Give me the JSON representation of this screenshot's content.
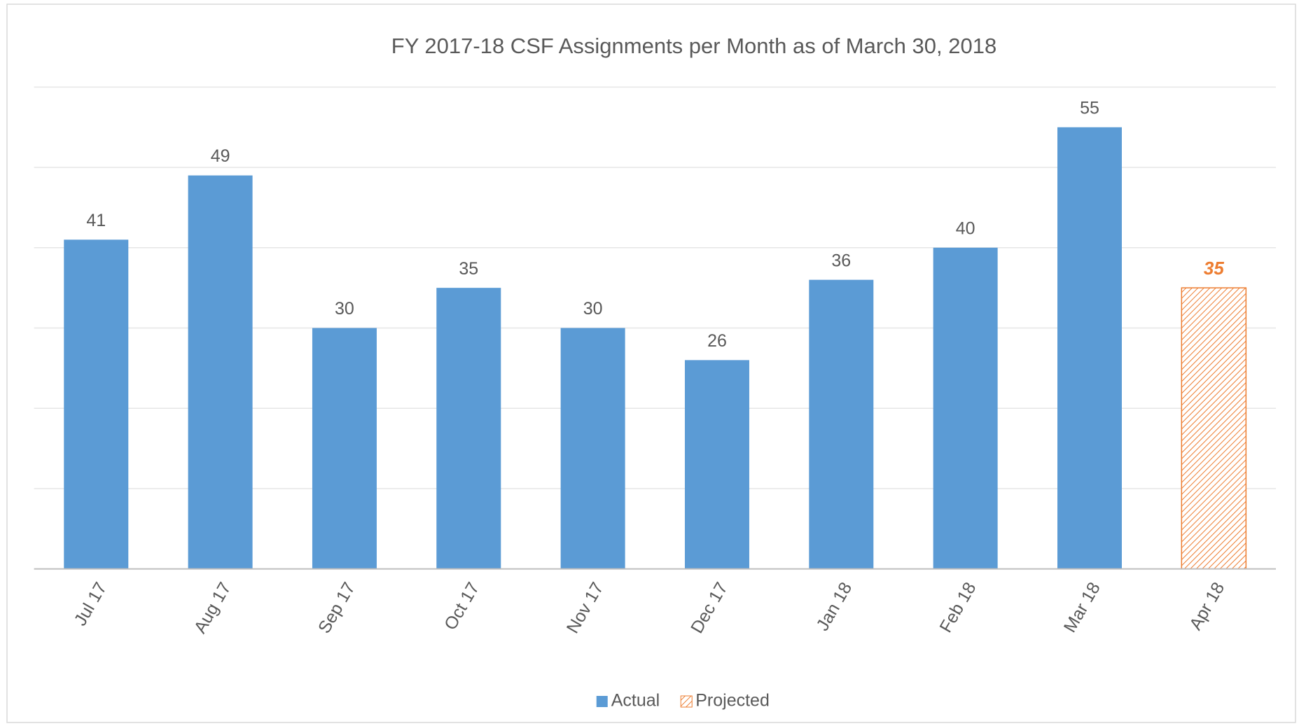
{
  "chart_data": {
    "type": "bar",
    "title": "FY 2017-18 CSF Assignments per Month as of March 30, 2018",
    "categories": [
      "Jul 17",
      "Aug 17",
      "Sep 17",
      "Oct 17",
      "Nov 17",
      "Dec 17",
      "Jan 18",
      "Feb 18",
      "Mar 18",
      "Apr 18"
    ],
    "series": [
      {
        "name": "Actual",
        "color": "#5b9bd5",
        "values": [
          41,
          49,
          30,
          35,
          30,
          26,
          36,
          40,
          55,
          null
        ]
      },
      {
        "name": "Projected",
        "color": "#ed7d31",
        "hatched": true,
        "values": [
          null,
          null,
          null,
          null,
          null,
          null,
          null,
          null,
          null,
          35
        ]
      }
    ],
    "ylim": [
      0,
      60
    ],
    "yticks": [
      0,
      10,
      20,
      30,
      40,
      50,
      60
    ],
    "show_ytick_labels": false,
    "grid": true,
    "legend": "bottom"
  }
}
